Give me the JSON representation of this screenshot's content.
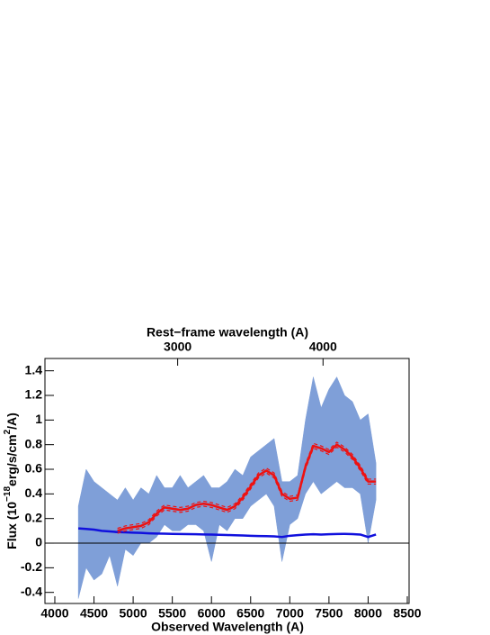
{
  "chart_data": {
    "type": "line",
    "xlabel": "Observed Wavelength (A)",
    "x2label": "Rest−frame wavelength (A)",
    "ylabel_parts": [
      "Flux (10",
      "−18",
      "erg/s/cm",
      "2",
      "/A)"
    ],
    "xlim": [
      3874,
      8523
    ],
    "xticks": [
      4000,
      4500,
      5000,
      5500,
      6000,
      6500,
      7000,
      7500,
      8000,
      8500
    ],
    "x2lim": [
      2087,
      4592
    ],
    "x2ticks": [
      3000,
      4000
    ],
    "ylim": [
      -0.49,
      1.5
    ],
    "yticks": [
      -0.4,
      -0.2,
      0,
      0.2,
      0.4,
      0.6,
      0.8,
      1,
      1.2,
      1.4
    ],
    "zero_line": true,
    "x": [
      4300,
      4400,
      4500,
      4600,
      4700,
      4800,
      4900,
      5000,
      5100,
      5200,
      5300,
      5400,
      5500,
      5600,
      5700,
      5800,
      5900,
      6000,
      6100,
      6200,
      6300,
      6400,
      6500,
      6600,
      6700,
      6800,
      6900,
      7000,
      7100,
      7200,
      7300,
      7400,
      7500,
      7600,
      7700,
      7800,
      7900,
      8000,
      8100
    ],
    "series": [
      {
        "kind": "band",
        "color": "#7f9fd8",
        "low": [
          -0.45,
          -0.2,
          -0.3,
          -0.25,
          -0.1,
          -0.35,
          -0.05,
          -0.1,
          0,
          0,
          0.05,
          0.15,
          0.1,
          0.1,
          0.15,
          0.15,
          0.1,
          -0.15,
          0.15,
          0.1,
          0.2,
          0.2,
          0.3,
          0.35,
          0.4,
          0.3,
          -0.15,
          0.15,
          0.2,
          0.4,
          0.5,
          0.4,
          0.45,
          0.5,
          0.45,
          0.45,
          0.4,
          0,
          0.35
        ],
        "high": [
          0.3,
          0.6,
          0.5,
          0.45,
          0.4,
          0.35,
          0.45,
          0.35,
          0.45,
          0.4,
          0.55,
          0.45,
          0.45,
          0.55,
          0.45,
          0.5,
          0.55,
          0.45,
          0.45,
          0.5,
          0.6,
          0.55,
          0.7,
          0.75,
          0.8,
          0.85,
          0.5,
          0.5,
          0.55,
          1,
          1.35,
          1.1,
          1.25,
          1.35,
          1.2,
          1.15,
          1,
          1.05,
          0.65
        ]
      },
      {
        "kind": "line",
        "color": "#1010dd",
        "width": 2.5,
        "values": [
          0.12,
          0.115,
          0.11,
          0.1,
          0.095,
          0.09,
          0.088,
          0.085,
          0.083,
          0.08,
          0.078,
          0.077,
          0.075,
          0.074,
          0.073,
          0.072,
          0.071,
          0.07,
          0.068,
          0.066,
          0.064,
          0.062,
          0.06,
          0.058,
          0.057,
          0.055,
          0.05,
          0.06,
          0.065,
          0.07,
          0.072,
          0.07,
          0.072,
          0.074,
          0.075,
          0.073,
          0.07,
          0.05,
          0.07
        ]
      },
      {
        "kind": "line",
        "color": "#ee1111",
        "width": 1.2,
        "dash": true,
        "values": [
          null,
          null,
          null,
          null,
          null,
          0.12,
          0.14,
          0.15,
          0.16,
          0.19,
          0.26,
          0.31,
          0.3,
          0.29,
          0.3,
          0.33,
          0.34,
          0.33,
          0.31,
          0.29,
          0.32,
          0.39,
          0.48,
          0.57,
          0.61,
          0.57,
          0.42,
          0.38,
          0.39,
          0.64,
          0.81,
          0.79,
          0.76,
          0.82,
          0.78,
          0.72,
          0.63,
          0.52,
          0.52
        ]
      },
      {
        "kind": "line",
        "color": "#ee1111",
        "width": 1.2,
        "dash": true,
        "values": [
          null,
          null,
          null,
          null,
          null,
          0.08,
          0.1,
          0.11,
          0.12,
          0.15,
          0.22,
          0.27,
          0.26,
          0.25,
          0.26,
          0.29,
          0.3,
          0.29,
          0.27,
          0.25,
          0.28,
          0.35,
          0.44,
          0.53,
          0.57,
          0.53,
          0.38,
          0.34,
          0.35,
          0.6,
          0.77,
          0.75,
          0.72,
          0.78,
          0.74,
          0.68,
          0.59,
          0.48,
          0.48
        ]
      },
      {
        "kind": "line",
        "color": "#ee1111",
        "width": 2.5,
        "values": [
          null,
          null,
          null,
          null,
          null,
          0.1,
          0.12,
          0.13,
          0.14,
          0.17,
          0.24,
          0.29,
          0.28,
          0.27,
          0.28,
          0.31,
          0.32,
          0.31,
          0.29,
          0.27,
          0.3,
          0.37,
          0.46,
          0.55,
          0.59,
          0.55,
          0.4,
          0.36,
          0.37,
          0.62,
          0.79,
          0.77,
          0.74,
          0.8,
          0.76,
          0.7,
          0.61,
          0.5,
          0.5
        ]
      }
    ]
  }
}
